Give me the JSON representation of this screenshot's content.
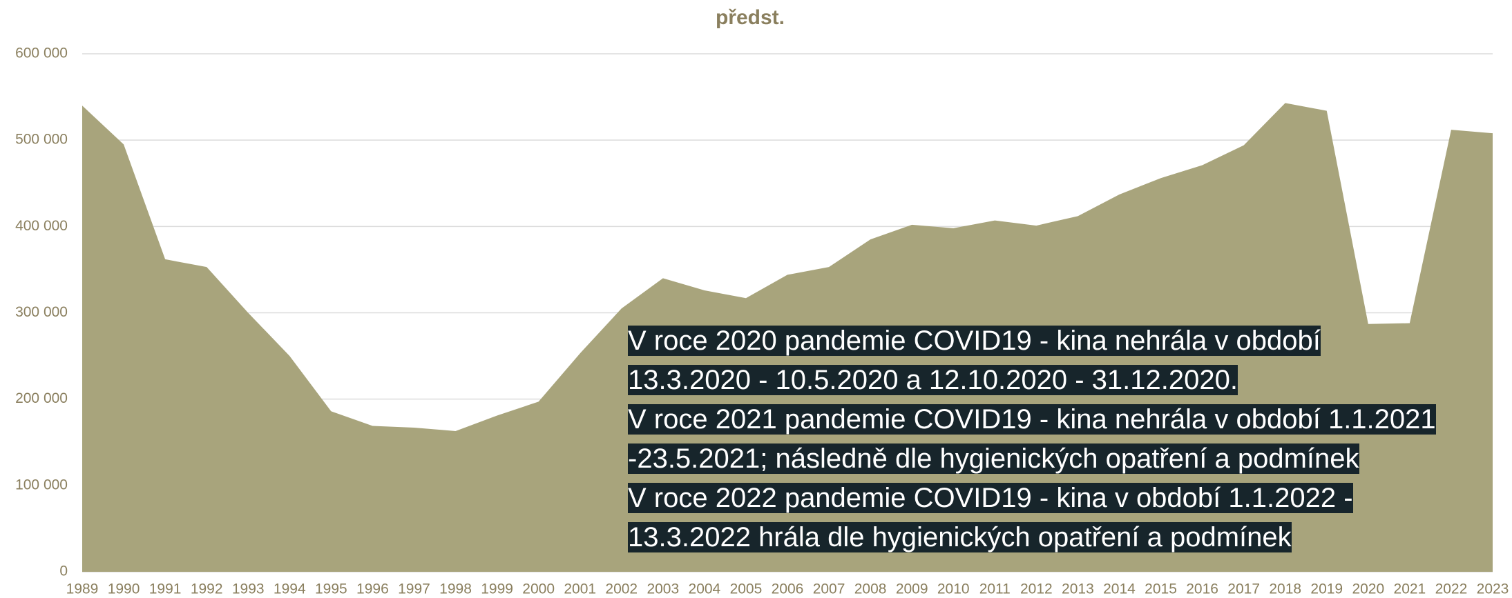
{
  "chart_data": {
    "type": "area",
    "title": "předst.",
    "categories": [
      "1989",
      "1990",
      "1991",
      "1992",
      "1993",
      "1994",
      "1995",
      "1996",
      "1997",
      "1998",
      "1999",
      "2000",
      "2001",
      "2002",
      "2003",
      "2004",
      "2005",
      "2006",
      "2007",
      "2008",
      "2009",
      "2010",
      "2011",
      "2012",
      "2013",
      "2014",
      "2015",
      "2016",
      "2017",
      "2018",
      "2019",
      "2020",
      "2021",
      "2022",
      "2023"
    ],
    "values": [
      540000,
      495000,
      362000,
      353000,
      300000,
      250000,
      186000,
      169000,
      167000,
      163000,
      181000,
      197000,
      253000,
      305000,
      340000,
      326000,
      317000,
      344000,
      353000,
      385000,
      402000,
      398000,
      407000,
      401000,
      412000,
      437000,
      456000,
      471000,
      494000,
      543000,
      534000,
      287000,
      288000,
      512000,
      508000
    ],
    "color": "#a8a47c",
    "ylim": [
      0,
      600000
    ],
    "yticks": [
      0,
      {
        "value": 100000,
        "label": "100 000"
      },
      {
        "value": 200000,
        "label": "200 000"
      },
      {
        "value": 300000,
        "label": "300 000"
      },
      {
        "value": 400000,
        "label": "400 000"
      },
      {
        "value": 500000,
        "label": "500 000"
      },
      {
        "value": 600000,
        "label": "600 000"
      }
    ],
    "grid": true,
    "annotations": [
      "V roce 2020 pandemie COVID19 - kina nehrála v období",
      "13.3.2020 - 10.5.2020 a 12.10.2020 - 31.12.2020.",
      "V roce 2021 pandemie COVID19 - kina nehrála v období 1.1.2021",
      "-23.5.2021; následně dle hygienických opatření a podmínek",
      "V roce 2022 pandemie COVID19 - kina v období 1.1.2022 -",
      "13.3.2022 hrála dle hygienických opatření a podmínek"
    ]
  }
}
